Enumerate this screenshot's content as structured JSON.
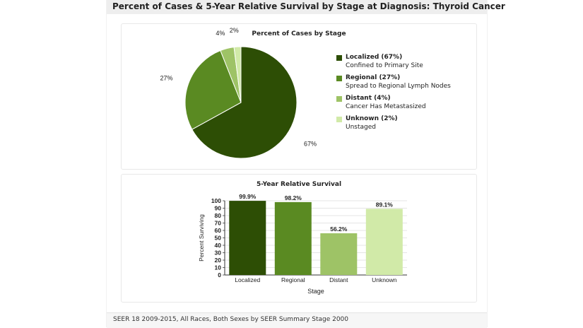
{
  "page_title": "Percent of Cases & 5-Year Relative Survival by Stage at Diagnosis: Thyroid Cancer",
  "footer": "SEER 18 2009-2015, All Races, Both Sexes by SEER Summary Stage 2000",
  "chart_data": [
    {
      "type": "pie",
      "title": "Percent of Cases by Stage",
      "categories": [
        "Localized",
        "Regional",
        "Distant",
        "Unknown"
      ],
      "values": [
        67,
        27,
        4,
        2
      ],
      "slice_labels": [
        "67%",
        "27%",
        "4%",
        "2%"
      ],
      "legend": [
        {
          "label": "Localized (67%)",
          "desc": "Confined to Primary Site",
          "color": "#2d4e05"
        },
        {
          "label": "Regional (27%)",
          "desc": "Spread to Regional Lymph Nodes",
          "color": "#5a8a22"
        },
        {
          "label": "Distant (4%)",
          "desc": "Cancer Has Metastasized",
          "color": "#9ec366"
        },
        {
          "label": "Unknown (2%)",
          "desc": "Unstaged",
          "color": "#d1eaa8"
        }
      ],
      "colors": [
        "#2d4e05",
        "#5a8a22",
        "#9ec366",
        "#d1eaa8"
      ],
      "legend_position": "right"
    },
    {
      "type": "bar",
      "title": "5-Year Relative Survival",
      "categories": [
        "Localized",
        "Regional",
        "Distant",
        "Unknown"
      ],
      "values": [
        99.9,
        98.2,
        56.2,
        89.1
      ],
      "value_labels": [
        "99.9%",
        "98.2%",
        "56.2%",
        "89.1%"
      ],
      "colors": [
        "#2d4e05",
        "#5a8a22",
        "#9ec366",
        "#d1eaa8"
      ],
      "xlabel": "Stage",
      "ylabel": "Percent Surviving",
      "ylim": [
        0,
        100
      ],
      "yticks": [
        0,
        10,
        20,
        30,
        40,
        50,
        60,
        70,
        80,
        90,
        100
      ],
      "grid": true
    }
  ]
}
